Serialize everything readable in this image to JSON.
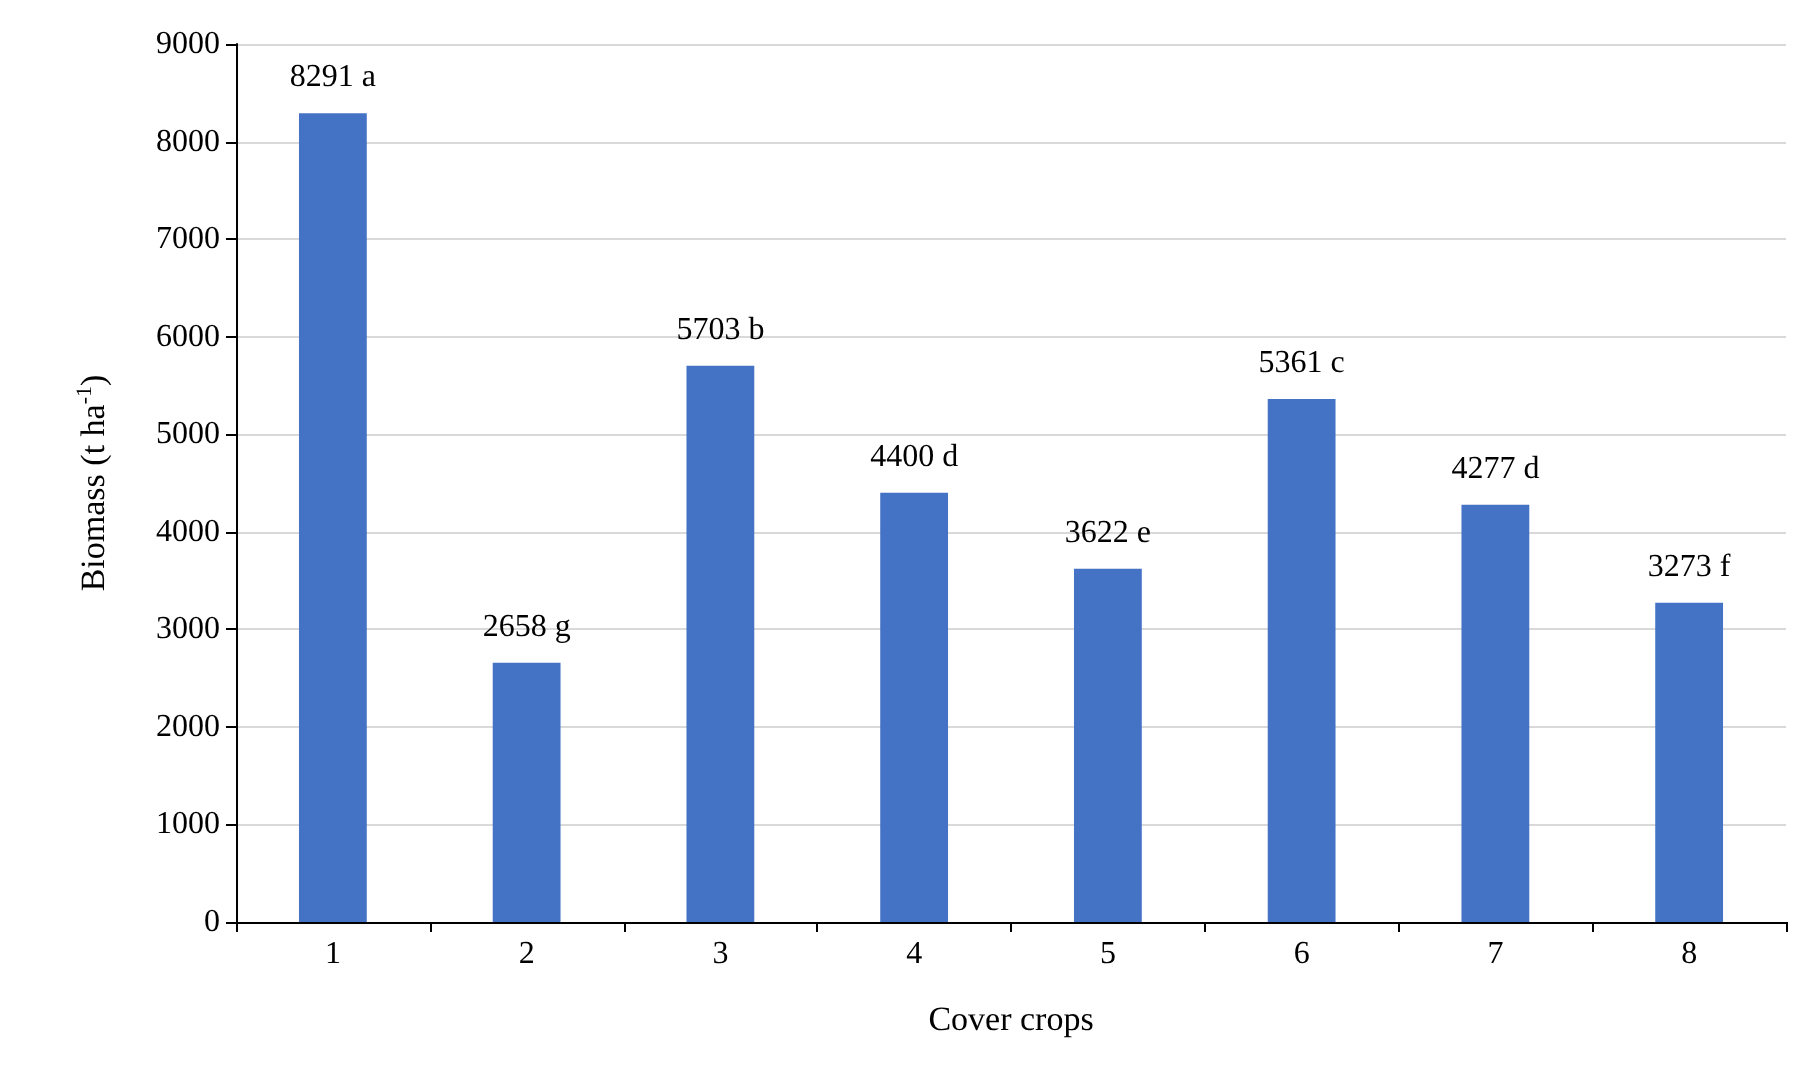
{
  "chart_data": {
    "type": "bar",
    "xlabel": "Cover crops",
    "ylabel": "Biomass (t ha$^{-1}$)",
    "categories": [
      "1",
      "2",
      "3",
      "4",
      "5",
      "6",
      "7",
      "8"
    ],
    "values": [
      8291,
      2658,
      5703,
      4400,
      3622,
      5361,
      4277,
      3273
    ],
    "value_labels": [
      "8291 a",
      "2658 g",
      "5703 b",
      "4400 d",
      "3622 e",
      "5361 c",
      "4277 d",
      "3273 f"
    ],
    "color": "#4472c4",
    "ylim": [
      0,
      9000
    ],
    "yticks": [
      0,
      1000,
      2000,
      3000,
      4000,
      5000,
      6000,
      7000,
      8000,
      9000
    ],
    "grid": "y"
  }
}
